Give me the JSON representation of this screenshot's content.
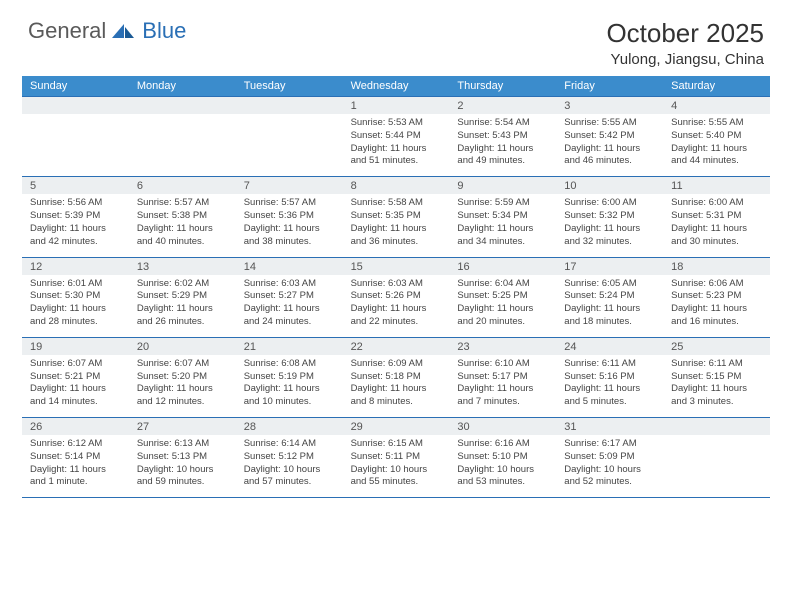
{
  "logo": {
    "text1": "General",
    "text2": "Blue"
  },
  "header": {
    "title": "October 2025",
    "location": "Yulong, Jiangsu, China"
  },
  "colors": {
    "header_bar": "#3b8ccc",
    "border": "#2a6fb5",
    "daynum_bg": "#eceff1",
    "text": "#333333",
    "logo_gray": "#5a5a5a",
    "logo_blue": "#2a6fb5"
  },
  "weekdays": [
    "Sunday",
    "Monday",
    "Tuesday",
    "Wednesday",
    "Thursday",
    "Friday",
    "Saturday"
  ],
  "weeks": [
    [
      {
        "day": "",
        "sunrise": "",
        "sunset": "",
        "daylight": ""
      },
      {
        "day": "",
        "sunrise": "",
        "sunset": "",
        "daylight": ""
      },
      {
        "day": "",
        "sunrise": "",
        "sunset": "",
        "daylight": ""
      },
      {
        "day": "1",
        "sunrise": "Sunrise: 5:53 AM",
        "sunset": "Sunset: 5:44 PM",
        "daylight": "Daylight: 11 hours and 51 minutes."
      },
      {
        "day": "2",
        "sunrise": "Sunrise: 5:54 AM",
        "sunset": "Sunset: 5:43 PM",
        "daylight": "Daylight: 11 hours and 49 minutes."
      },
      {
        "day": "3",
        "sunrise": "Sunrise: 5:55 AM",
        "sunset": "Sunset: 5:42 PM",
        "daylight": "Daylight: 11 hours and 46 minutes."
      },
      {
        "day": "4",
        "sunrise": "Sunrise: 5:55 AM",
        "sunset": "Sunset: 5:40 PM",
        "daylight": "Daylight: 11 hours and 44 minutes."
      }
    ],
    [
      {
        "day": "5",
        "sunrise": "Sunrise: 5:56 AM",
        "sunset": "Sunset: 5:39 PM",
        "daylight": "Daylight: 11 hours and 42 minutes."
      },
      {
        "day": "6",
        "sunrise": "Sunrise: 5:57 AM",
        "sunset": "Sunset: 5:38 PM",
        "daylight": "Daylight: 11 hours and 40 minutes."
      },
      {
        "day": "7",
        "sunrise": "Sunrise: 5:57 AM",
        "sunset": "Sunset: 5:36 PM",
        "daylight": "Daylight: 11 hours and 38 minutes."
      },
      {
        "day": "8",
        "sunrise": "Sunrise: 5:58 AM",
        "sunset": "Sunset: 5:35 PM",
        "daylight": "Daylight: 11 hours and 36 minutes."
      },
      {
        "day": "9",
        "sunrise": "Sunrise: 5:59 AM",
        "sunset": "Sunset: 5:34 PM",
        "daylight": "Daylight: 11 hours and 34 minutes."
      },
      {
        "day": "10",
        "sunrise": "Sunrise: 6:00 AM",
        "sunset": "Sunset: 5:32 PM",
        "daylight": "Daylight: 11 hours and 32 minutes."
      },
      {
        "day": "11",
        "sunrise": "Sunrise: 6:00 AM",
        "sunset": "Sunset: 5:31 PM",
        "daylight": "Daylight: 11 hours and 30 minutes."
      }
    ],
    [
      {
        "day": "12",
        "sunrise": "Sunrise: 6:01 AM",
        "sunset": "Sunset: 5:30 PM",
        "daylight": "Daylight: 11 hours and 28 minutes."
      },
      {
        "day": "13",
        "sunrise": "Sunrise: 6:02 AM",
        "sunset": "Sunset: 5:29 PM",
        "daylight": "Daylight: 11 hours and 26 minutes."
      },
      {
        "day": "14",
        "sunrise": "Sunrise: 6:03 AM",
        "sunset": "Sunset: 5:27 PM",
        "daylight": "Daylight: 11 hours and 24 minutes."
      },
      {
        "day": "15",
        "sunrise": "Sunrise: 6:03 AM",
        "sunset": "Sunset: 5:26 PM",
        "daylight": "Daylight: 11 hours and 22 minutes."
      },
      {
        "day": "16",
        "sunrise": "Sunrise: 6:04 AM",
        "sunset": "Sunset: 5:25 PM",
        "daylight": "Daylight: 11 hours and 20 minutes."
      },
      {
        "day": "17",
        "sunrise": "Sunrise: 6:05 AM",
        "sunset": "Sunset: 5:24 PM",
        "daylight": "Daylight: 11 hours and 18 minutes."
      },
      {
        "day": "18",
        "sunrise": "Sunrise: 6:06 AM",
        "sunset": "Sunset: 5:23 PM",
        "daylight": "Daylight: 11 hours and 16 minutes."
      }
    ],
    [
      {
        "day": "19",
        "sunrise": "Sunrise: 6:07 AM",
        "sunset": "Sunset: 5:21 PM",
        "daylight": "Daylight: 11 hours and 14 minutes."
      },
      {
        "day": "20",
        "sunrise": "Sunrise: 6:07 AM",
        "sunset": "Sunset: 5:20 PM",
        "daylight": "Daylight: 11 hours and 12 minutes."
      },
      {
        "day": "21",
        "sunrise": "Sunrise: 6:08 AM",
        "sunset": "Sunset: 5:19 PM",
        "daylight": "Daylight: 11 hours and 10 minutes."
      },
      {
        "day": "22",
        "sunrise": "Sunrise: 6:09 AM",
        "sunset": "Sunset: 5:18 PM",
        "daylight": "Daylight: 11 hours and 8 minutes."
      },
      {
        "day": "23",
        "sunrise": "Sunrise: 6:10 AM",
        "sunset": "Sunset: 5:17 PM",
        "daylight": "Daylight: 11 hours and 7 minutes."
      },
      {
        "day": "24",
        "sunrise": "Sunrise: 6:11 AM",
        "sunset": "Sunset: 5:16 PM",
        "daylight": "Daylight: 11 hours and 5 minutes."
      },
      {
        "day": "25",
        "sunrise": "Sunrise: 6:11 AM",
        "sunset": "Sunset: 5:15 PM",
        "daylight": "Daylight: 11 hours and 3 minutes."
      }
    ],
    [
      {
        "day": "26",
        "sunrise": "Sunrise: 6:12 AM",
        "sunset": "Sunset: 5:14 PM",
        "daylight": "Daylight: 11 hours and 1 minute."
      },
      {
        "day": "27",
        "sunrise": "Sunrise: 6:13 AM",
        "sunset": "Sunset: 5:13 PM",
        "daylight": "Daylight: 10 hours and 59 minutes."
      },
      {
        "day": "28",
        "sunrise": "Sunrise: 6:14 AM",
        "sunset": "Sunset: 5:12 PM",
        "daylight": "Daylight: 10 hours and 57 minutes."
      },
      {
        "day": "29",
        "sunrise": "Sunrise: 6:15 AM",
        "sunset": "Sunset: 5:11 PM",
        "daylight": "Daylight: 10 hours and 55 minutes."
      },
      {
        "day": "30",
        "sunrise": "Sunrise: 6:16 AM",
        "sunset": "Sunset: 5:10 PM",
        "daylight": "Daylight: 10 hours and 53 minutes."
      },
      {
        "day": "31",
        "sunrise": "Sunrise: 6:17 AM",
        "sunset": "Sunset: 5:09 PM",
        "daylight": "Daylight: 10 hours and 52 minutes."
      },
      {
        "day": "",
        "sunrise": "",
        "sunset": "",
        "daylight": ""
      }
    ]
  ]
}
